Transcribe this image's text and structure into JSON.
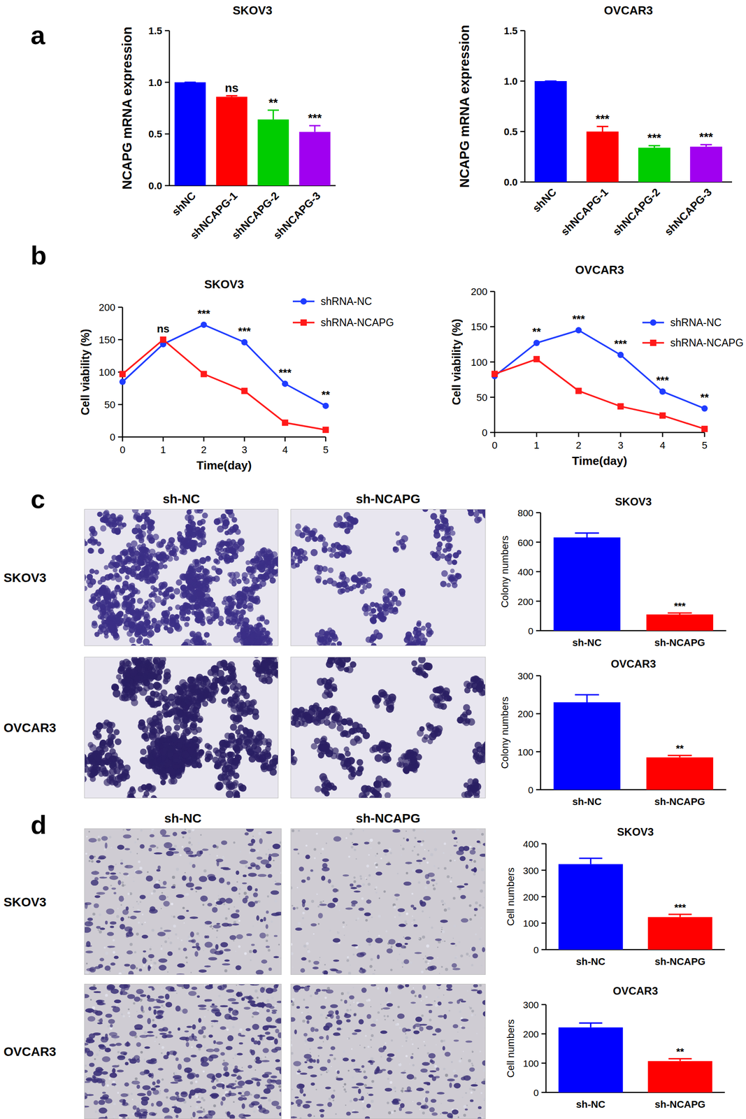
{
  "figure": {
    "panel_labels": [
      "a",
      "b",
      "c",
      "d"
    ],
    "image_grids": [
      {
        "columns": [
          "sh-NC",
          "sh-NCAPG"
        ],
        "rows": [
          "SKOV3",
          "OVCAR3"
        ]
      },
      {
        "columns": [
          "sh-NC",
          "sh-NCAPG"
        ],
        "rows": [
          "SKOV3",
          "OVCAR3"
        ]
      }
    ]
  },
  "chart_data": [
    {
      "type": "bar",
      "title": "SKOV3",
      "ylabel": "NCAPG mRNA expression",
      "categories": [
        "shNC",
        "shNCAPG-1",
        "shNCAPG-2",
        "shNCAPG-3"
      ],
      "values": [
        1.0,
        0.86,
        0.64,
        0.52
      ],
      "errors": [
        0,
        0.01,
        0.09,
        0.06
      ],
      "colors": [
        "#0000ff",
        "#ff0000",
        "#00cc00",
        "#a000f0"
      ],
      "ylim": [
        0,
        1.5
      ],
      "yticks": [
        {
          "value": 0,
          "label": "0.0"
        },
        {
          "value": 0.5,
          "label": "0.5"
        },
        {
          "value": 1,
          "label": "1.0"
        },
        {
          "value": 1.5,
          "label": "1.5"
        }
      ],
      "annotations": [
        {
          "x": "shNCAPG-1",
          "text": "ns"
        },
        {
          "x": "shNCAPG-2",
          "text": "**"
        },
        {
          "x": "shNCAPG-3",
          "text": "***"
        }
      ]
    },
    {
      "type": "bar",
      "title": "OVCAR3",
      "ylabel": "NCAPG mRNA expression",
      "categories": [
        "shNC",
        "shNCAPG-1",
        "shNCAPG-2",
        "shNCAPG-3"
      ],
      "values": [
        1.0,
        0.5,
        0.34,
        0.35
      ],
      "errors": [
        0,
        0.05,
        0.02,
        0.02
      ],
      "colors": [
        "#0000ff",
        "#ff0000",
        "#00cc00",
        "#a000f0"
      ],
      "ylim": [
        0,
        1.5
      ],
      "yticks": [
        {
          "value": 0,
          "label": "0.0"
        },
        {
          "value": 0.5,
          "label": "0.5"
        },
        {
          "value": 1,
          "label": "1.0"
        },
        {
          "value": 1.5,
          "label": "1.5"
        }
      ],
      "annotations": [
        {
          "x": "shNCAPG-1",
          "text": "***"
        },
        {
          "x": "shNCAPG-2",
          "text": "***"
        },
        {
          "x": "shNCAPG-3",
          "text": "***"
        }
      ]
    },
    {
      "type": "line",
      "title": "SKOV3",
      "xlabel": "Time(day)",
      "ylabel": "Cell viability (%)",
      "x": [
        0,
        1,
        2,
        3,
        4,
        5
      ],
      "xlim": [
        0,
        5
      ],
      "xticks": [
        0,
        1,
        2,
        3,
        4,
        5
      ],
      "ylim": [
        0,
        200
      ],
      "yticks": [
        0,
        50,
        100,
        150,
        200
      ],
      "legend": "upper right",
      "series": [
        {
          "name": "shRNA-NC",
          "color": "#1f3cff",
          "marker": "circle",
          "values": [
            85,
            143,
            173,
            146,
            82,
            48
          ]
        },
        {
          "name": "shRNA-NCAPG",
          "color": "#ff1a1a",
          "marker": "square",
          "values": [
            97,
            150,
            97,
            71,
            22,
            11
          ]
        }
      ],
      "annotations": [
        {
          "x": 1,
          "text": "ns"
        },
        {
          "x": 2,
          "text": "***"
        },
        {
          "x": 3,
          "text": "***"
        },
        {
          "x": 4,
          "text": "***"
        },
        {
          "x": 5,
          "text": "**"
        }
      ]
    },
    {
      "type": "line",
      "title": "OVCAR3",
      "xlabel": "Time(day)",
      "ylabel": "Cell viability (%)",
      "x": [
        0,
        1,
        2,
        3,
        4,
        5
      ],
      "xlim": [
        0,
        5
      ],
      "xticks": [
        0,
        1,
        2,
        3,
        4,
        5
      ],
      "ylim": [
        0,
        200
      ],
      "yticks": [
        0,
        50,
        100,
        150,
        200
      ],
      "legend": "upper right",
      "series": [
        {
          "name": "shRNA-NC",
          "color": "#1f3cff",
          "marker": "circle",
          "values": [
            80,
            127,
            145,
            110,
            58,
            34
          ]
        },
        {
          "name": "shRNA-NCAPG",
          "color": "#ff1a1a",
          "marker": "square",
          "values": [
            83,
            104,
            59,
            37,
            24,
            5
          ]
        }
      ],
      "annotations": [
        {
          "x": 1,
          "text": "**"
        },
        {
          "x": 2,
          "text": "***"
        },
        {
          "x": 3,
          "text": "***"
        },
        {
          "x": 4,
          "text": "***"
        },
        {
          "x": 5,
          "text": "**"
        }
      ]
    },
    {
      "type": "bar",
      "title": "SKOV3",
      "ylabel": "Colony numbers",
      "categories": [
        "sh-NC",
        "sh-NCAPG"
      ],
      "values": [
        632,
        110
      ],
      "errors": [
        30,
        10
      ],
      "colors": [
        "#0000ff",
        "#ff0000"
      ],
      "ylim": [
        0,
        800
      ],
      "yticks": [
        0,
        200,
        400,
        600,
        800
      ],
      "annotations": [
        {
          "x": "sh-NCAPG",
          "text": "***"
        }
      ]
    },
    {
      "type": "bar",
      "title": "OVCAR3",
      "ylabel": "Colony numbers",
      "categories": [
        "sh-NC",
        "sh-NCAPG"
      ],
      "values": [
        230,
        85
      ],
      "errors": [
        20,
        5
      ],
      "colors": [
        "#0000ff",
        "#ff0000"
      ],
      "ylim": [
        0,
        300
      ],
      "yticks": [
        0,
        100,
        200,
        300
      ],
      "annotations": [
        {
          "x": "sh-NCAPG",
          "text": "**"
        }
      ]
    },
    {
      "type": "bar",
      "title": "SKOV3",
      "ylabel": "Cell numbers",
      "categories": [
        "sh-NC",
        "sh-NCAPG"
      ],
      "values": [
        323,
        123
      ],
      "errors": [
        22,
        10
      ],
      "colors": [
        "#0000ff",
        "#ff0000"
      ],
      "ylim": [
        0,
        400
      ],
      "yticks": [
        0,
        100,
        200,
        300,
        400
      ],
      "annotations": [
        {
          "x": "sh-NCAPG",
          "text": "***"
        }
      ]
    },
    {
      "type": "bar",
      "title": "OVCAR3",
      "ylabel": "Cell numbers",
      "categories": [
        "sh-NC",
        "sh-NCAPG"
      ],
      "values": [
        222,
        107
      ],
      "errors": [
        15,
        8
      ],
      "colors": [
        "#0000ff",
        "#ff0000"
      ],
      "ylim": [
        0,
        300
      ],
      "yticks": [
        0,
        100,
        200,
        300
      ],
      "annotations": [
        {
          "x": "sh-NCAPG",
          "text": "**"
        }
      ]
    }
  ]
}
